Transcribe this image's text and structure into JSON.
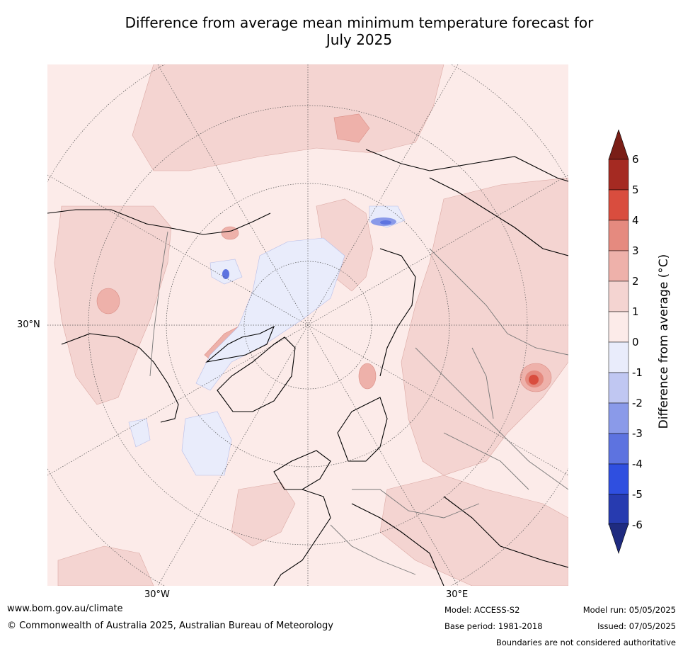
{
  "title_line1": "Difference from average mean minimum temperature forecast for",
  "title_line2": "July 2025",
  "map": {
    "lat_label": "30°N",
    "lon_label_west": "30°W",
    "lon_label_east": "30°E",
    "background_color": "#fcebe9"
  },
  "colorbar": {
    "label": "Difference from average (°C)",
    "ticks": [
      "6",
      "5",
      "4",
      "3",
      "2",
      "1",
      "0",
      "-1",
      "-2",
      "-3",
      "-4",
      "-5",
      "-6"
    ],
    "bins": [
      {
        "range": "5 to 6",
        "color": "#a52a22"
      },
      {
        "range": "4 to 5",
        "color": "#d94d3e"
      },
      {
        "range": "3 to 4",
        "color": "#e58a7f"
      },
      {
        "range": "2 to 3",
        "color": "#eeb1aa"
      },
      {
        "range": "1 to 2",
        "color": "#f4d4d1"
      },
      {
        "range": "0 to 1",
        "color": "#fcebe9"
      },
      {
        "range": "-1 to 0",
        "color": "#e9ecfb"
      },
      {
        "range": "-2 to -1",
        "color": "#c0c7f2"
      },
      {
        "range": "-3 to -2",
        "color": "#8a9ae9"
      },
      {
        "range": "-4 to -3",
        "color": "#5d73e0"
      },
      {
        "range": "-5 to -4",
        "color": "#2f4fe0"
      },
      {
        "range": "-6 to -5",
        "color": "#273bb0"
      }
    ],
    "over_color": "#7a1e17",
    "under_color": "#1f2b80"
  },
  "footer": {
    "website": "www.bom.gov.au/climate",
    "copyright": "© Commonwealth of Australia 2025, Australian Bureau of Meteorology",
    "model": "Model: ACCESS-S2",
    "base_period": "Base period: 1981-2018",
    "model_run": "Model run: 05/05/2025",
    "issued": "Issued: 07/05/2025",
    "disclaimer": "Boundaries are not considered authoritative"
  }
}
